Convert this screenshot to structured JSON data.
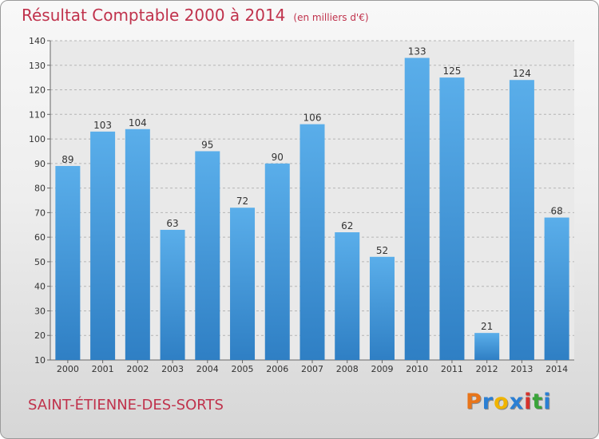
{
  "chart_data": {
    "type": "bar",
    "title": "Résultat Comptable 2000 à 2014",
    "unit": "(en milliers d'€)",
    "categories": [
      "2000",
      "2001",
      "2002",
      "2003",
      "2004",
      "2005",
      "2006",
      "2007",
      "2008",
      "2009",
      "2010",
      "2011",
      "2012",
      "2013",
      "2014"
    ],
    "values": [
      89,
      103,
      104,
      63,
      95,
      72,
      90,
      106,
      62,
      52,
      133,
      125,
      21,
      124,
      68
    ],
    "yticks": [
      10,
      20,
      30,
      40,
      50,
      60,
      70,
      80,
      90,
      100,
      110,
      120,
      130,
      140
    ],
    "ylim": [
      10,
      140
    ],
    "xlabel": "",
    "ylabel": "",
    "grid": true,
    "bar_color": "#3f95d8"
  },
  "commune": "SAINT-ÉTIENNE-DES-SORTS",
  "logo": {
    "letters": [
      "P",
      "r",
      "o",
      "x",
      "i",
      "t",
      "i"
    ],
    "colors": [
      "#e8751a",
      "#2a7fd4",
      "#f0b400",
      "#2a7fd4",
      "#d6322a",
      "#3aa43a",
      "#2a7fd4"
    ]
  }
}
